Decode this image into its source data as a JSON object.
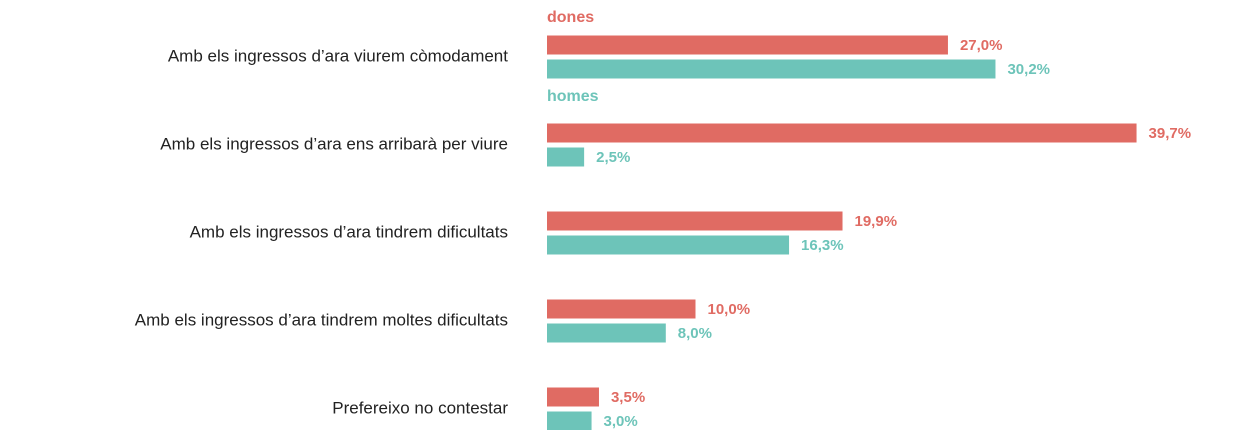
{
  "chart_data": {
    "type": "bar",
    "orientation": "horizontal",
    "categories": [
      "Amb els ingressos d’ara viurem còmodament",
      "Amb els ingressos d’ara ens arribarà per viure",
      "Amb els ingressos d’ara tindrem dificultats",
      "Amb els ingressos d’ara tindrem moltes dificultats",
      "Prefereixo no contestar"
    ],
    "series": [
      {
        "name": "dones",
        "color": "#e06b63",
        "values": [
          27.0,
          39.7,
          19.9,
          10.0,
          3.5
        ],
        "value_labels": [
          "27,0%",
          "39,7%",
          "19,9%",
          "10,0%",
          "3,5%"
        ]
      },
      {
        "name": "homes",
        "color": "#6dc4b9",
        "values": [
          30.2,
          2.5,
          16.3,
          8.0,
          3.0
        ],
        "value_labels": [
          "30,2%",
          "2,5%",
          "16,3%",
          "8,0%",
          "3,0%"
        ]
      }
    ]
  }
}
